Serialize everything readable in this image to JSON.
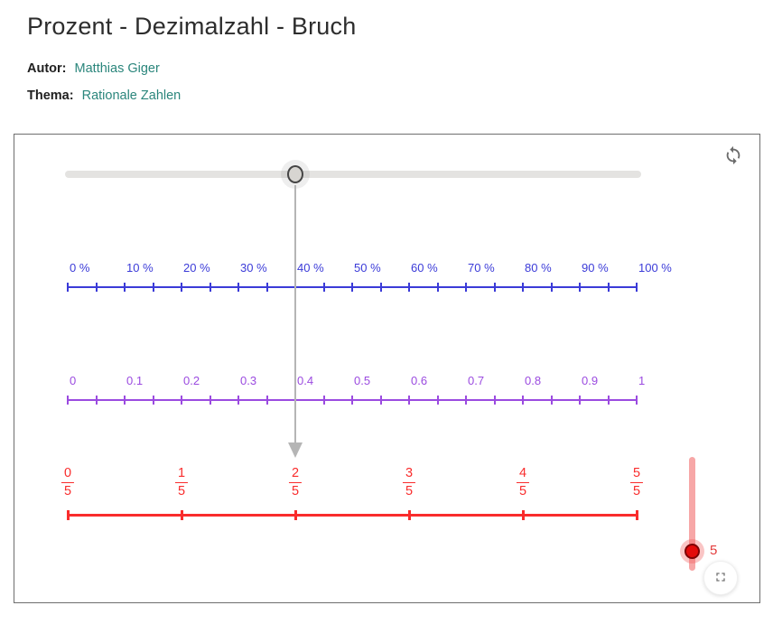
{
  "page": {
    "title": "Prozent - Dezimalzahl - Bruch",
    "author_label": "Autor:",
    "author_name": "Matthias Giger",
    "topic_label": "Thema:",
    "topic_name": "Rationale Zahlen"
  },
  "applet": {
    "main_slider": {
      "value": 0.4,
      "min": 0,
      "max": 1
    },
    "percent_line": {
      "color": "#3b3bd8",
      "tick_count": 21,
      "label_every": 2,
      "labels": [
        "0 %",
        "10 %",
        "20 %",
        "30 %",
        "40 %",
        "50 %",
        "60 %",
        "70 %",
        "80 %",
        "90 %",
        "100 %"
      ]
    },
    "decimal_line": {
      "color": "#9b4be0",
      "tick_count": 21,
      "label_every": 2,
      "labels": [
        "0",
        "0.1",
        "0.2",
        "0.3",
        "0.4",
        "0.5",
        "0.6",
        "0.7",
        "0.8",
        "0.9",
        "1"
      ]
    },
    "fraction_line": {
      "color": "#f92c2c",
      "tick_count": 6,
      "fractions": [
        {
          "numerator": "0",
          "denominator": "5"
        },
        {
          "numerator": "1",
          "denominator": "5"
        },
        {
          "numerator": "2",
          "denominator": "5"
        },
        {
          "numerator": "3",
          "denominator": "5"
        },
        {
          "numerator": "4",
          "denominator": "5"
        },
        {
          "numerator": "5",
          "denominator": "5"
        }
      ]
    },
    "denominator_slider": {
      "value": "5",
      "handle_color": "#e30b0b",
      "track_color": "#f7a7a7"
    },
    "arrow_color": "#b5b5b5"
  }
}
